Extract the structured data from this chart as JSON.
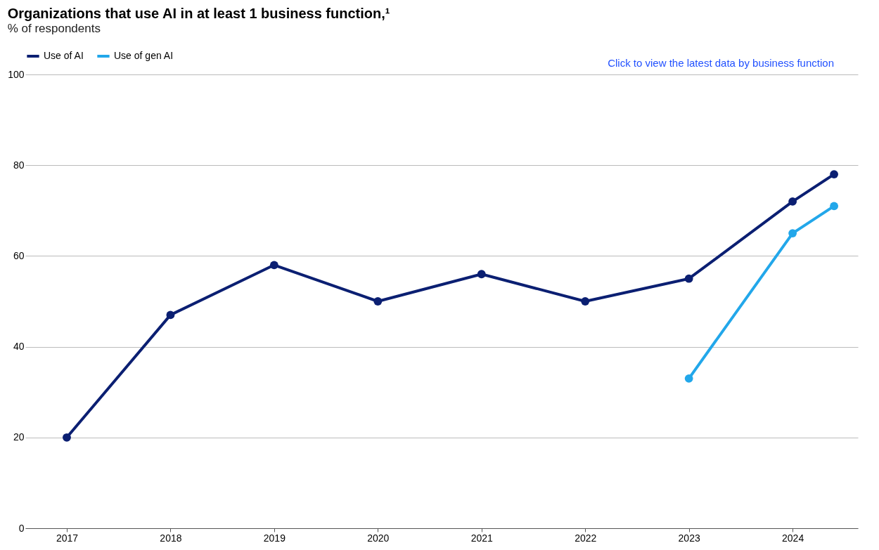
{
  "chart_data": {
    "type": "line",
    "title": "Organizations that use AI in at least 1 business function,¹",
    "subtitle": "% of respondents",
    "x": [
      2017,
      2018,
      2019,
      2020,
      2021,
      2022,
      2023,
      2024,
      2024.4
    ],
    "series": [
      {
        "name": "Use of AI",
        "color": "#0b1f72",
        "values": [
          20,
          47,
          58,
          50,
          56,
          50,
          55,
          72,
          78
        ]
      },
      {
        "name": "Use of gen AI",
        "color": "#22a7ea",
        "values": [
          null,
          null,
          null,
          null,
          null,
          null,
          33,
          65,
          71
        ]
      }
    ],
    "xlim": [
      2016.6,
      2024.63
    ],
    "xticks": [
      2017,
      2018,
      2019,
      2020,
      2021,
      2022,
      2023,
      2024
    ],
    "ylim": [
      0,
      100
    ],
    "yticks": [
      0,
      20,
      40,
      60,
      80,
      100
    ],
    "grid": "y",
    "legend": "top left",
    "marker": "circle",
    "line_style": "solid",
    "annotations": [
      "Click to view the latest data by business function"
    ]
  }
}
